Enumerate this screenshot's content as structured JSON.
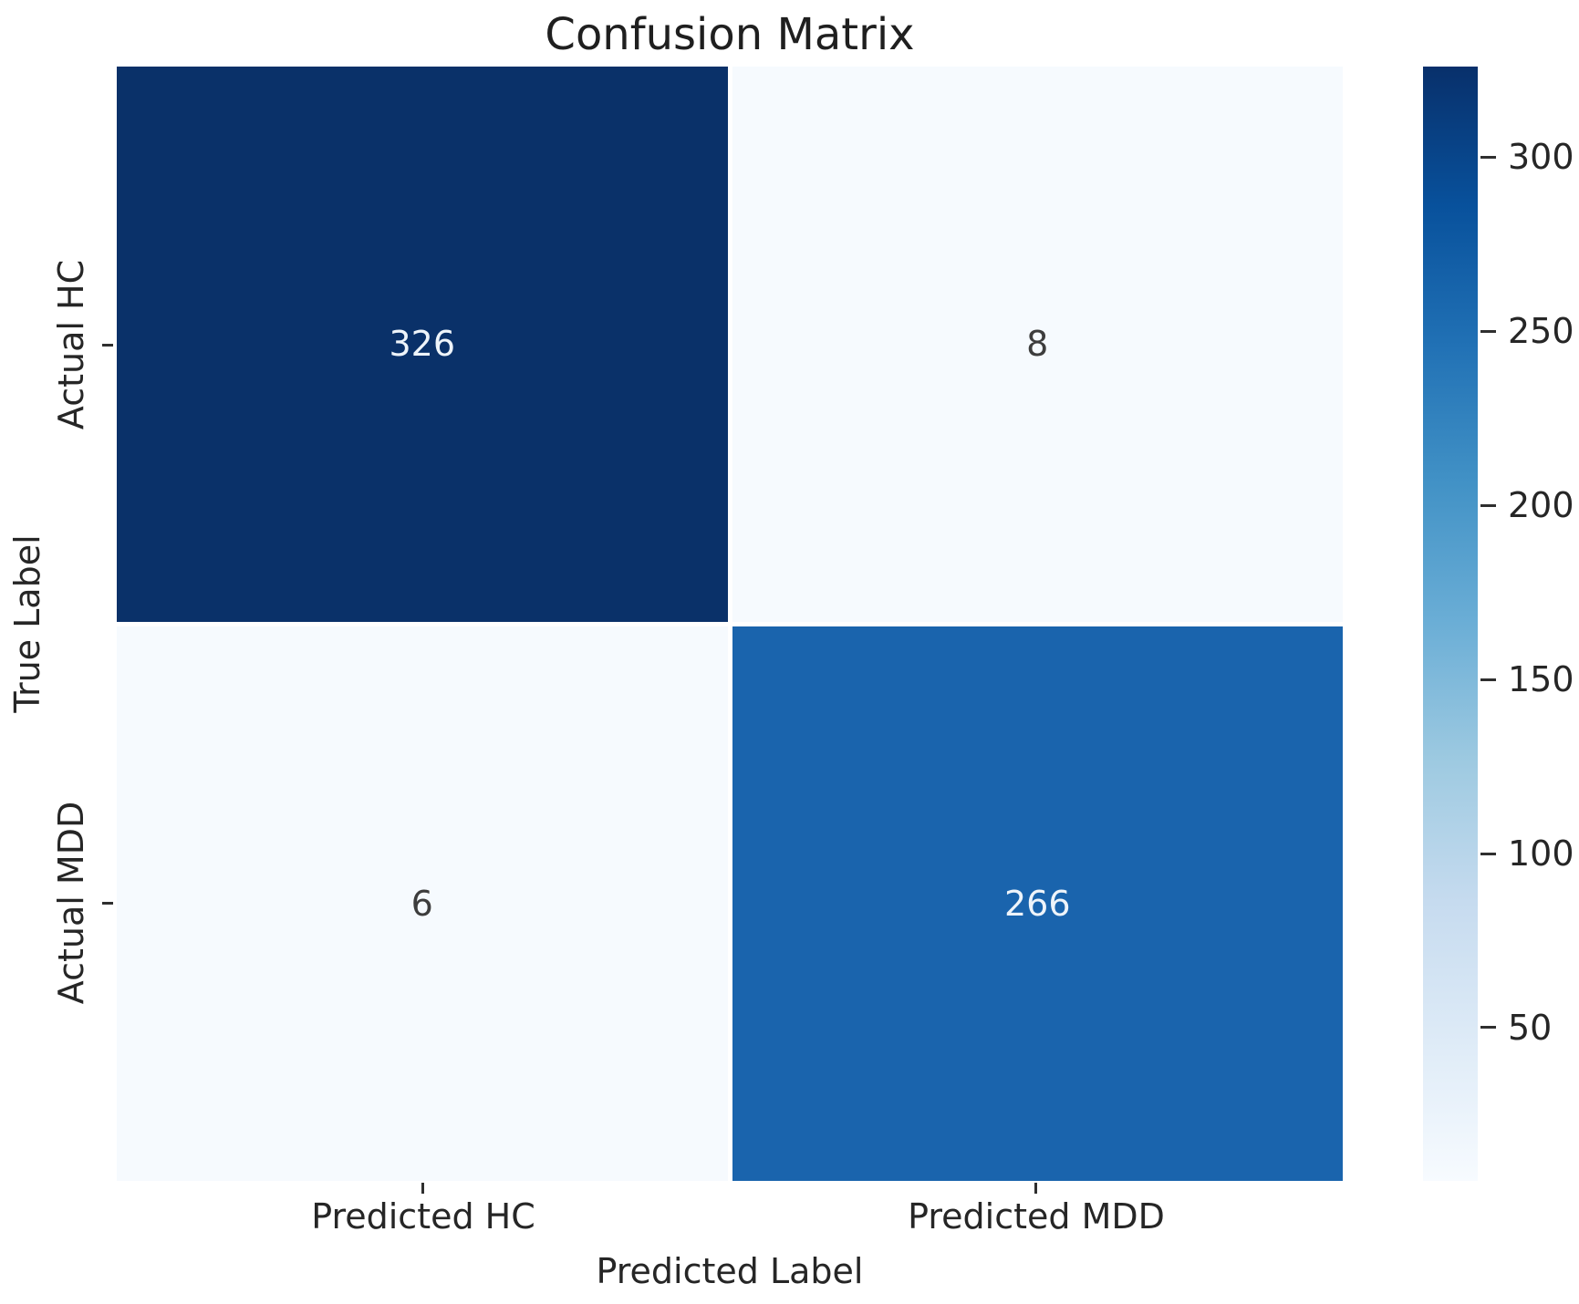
{
  "title": "Confusion Matrix",
  "chart_data": {
    "type": "heatmap",
    "title": "Confusion Matrix",
    "xlabel": "Predicted Label",
    "ylabel": "True Label",
    "x_categories": [
      "Predicted HC",
      "Predicted MDD"
    ],
    "y_categories": [
      "Actual HC",
      "Actual MDD"
    ],
    "values": [
      [
        326,
        8
      ],
      [
        6,
        266
      ]
    ],
    "colormap": "Blues",
    "grid": false,
    "legend_position": "right-colorbar",
    "cell_colors": [
      [
        "#0a3169",
        "#f6fafe"
      ],
      [
        "#f6fafe",
        "#1a64ad"
      ]
    ],
    "cell_text_colors": [
      [
        "#eef4fa",
        "#3d3d3d"
      ],
      [
        "#3d3d3d",
        "#eef4fa"
      ]
    ],
    "colorbar": {
      "vmin": 6,
      "vmax": 326,
      "ticks": [
        300,
        250,
        200,
        150,
        100,
        50
      ],
      "gradient_stops": [
        "#f7fbff 0%",
        "#deebf7 12.5%",
        "#c6dbef 25%",
        "#9ecae1 37.5%",
        "#6baed6 50%",
        "#4292c6 62.5%",
        "#2171b5 75%",
        "#08519c 87.5%",
        "#08306b 100%"
      ]
    }
  }
}
